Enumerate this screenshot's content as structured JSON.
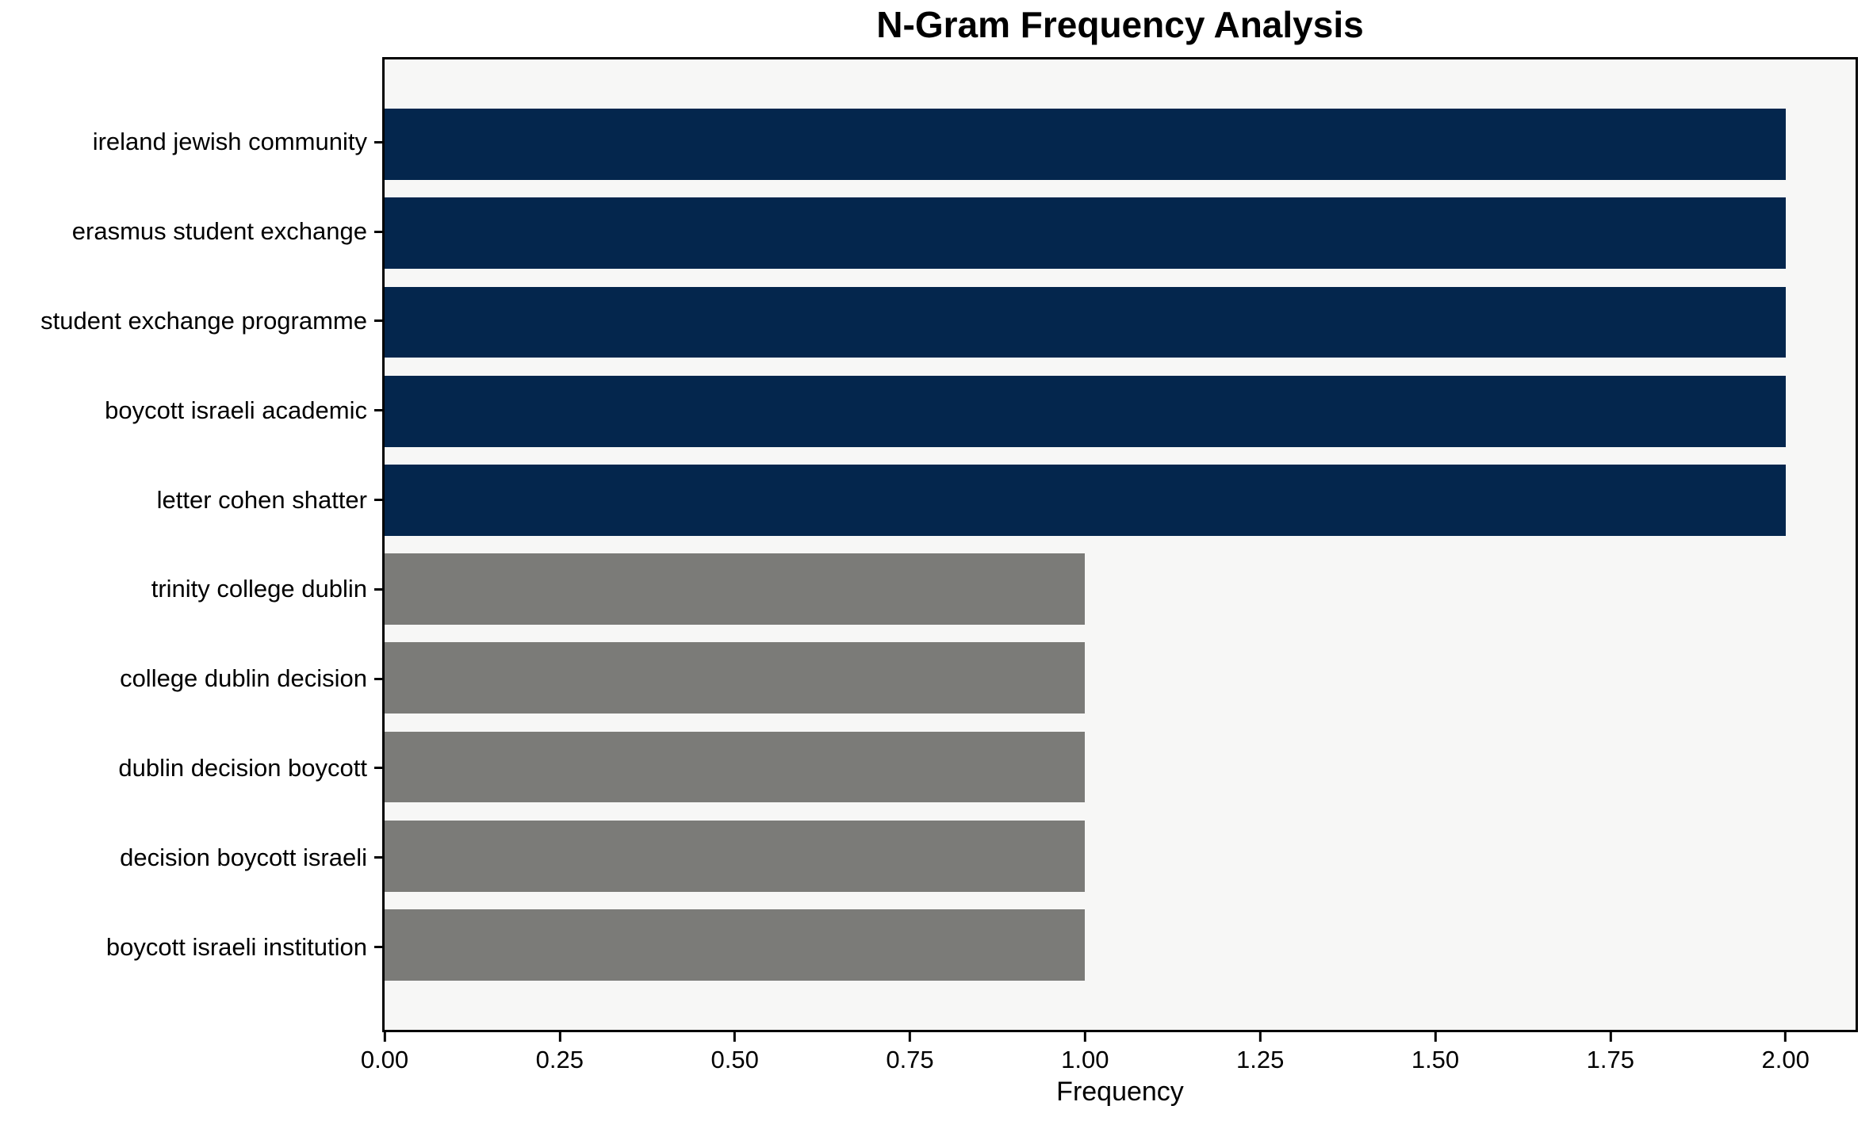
{
  "chart_data": {
    "type": "bar",
    "orientation": "horizontal",
    "title": "N-Gram Frequency Analysis",
    "xlabel": "Frequency",
    "ylabel": "",
    "categories": [
      "ireland jewish community",
      "erasmus student exchange",
      "student exchange programme",
      "boycott israeli academic",
      "letter cohen shatter",
      "trinity college dublin",
      "college dublin decision",
      "dublin decision boycott",
      "decision boycott israeli",
      "boycott israeli institution"
    ],
    "values": [
      2,
      2,
      2,
      2,
      2,
      1,
      1,
      1,
      1,
      1
    ],
    "bar_colors": [
      "#04264d",
      "#04264d",
      "#04264d",
      "#04264d",
      "#04264d",
      "#7b7b78",
      "#7b7b78",
      "#7b7b78",
      "#7b7b78",
      "#7b7b78"
    ],
    "xlim": [
      0,
      2.1
    ],
    "xticks": [
      {
        "value": 0.0,
        "label": "0.00"
      },
      {
        "value": 0.25,
        "label": "0.25"
      },
      {
        "value": 0.5,
        "label": "0.50"
      },
      {
        "value": 0.75,
        "label": "0.75"
      },
      {
        "value": 1.0,
        "label": "1.00"
      },
      {
        "value": 1.25,
        "label": "1.25"
      },
      {
        "value": 1.5,
        "label": "1.50"
      },
      {
        "value": 1.75,
        "label": "1.75"
      },
      {
        "value": 2.0,
        "label": "2.00"
      }
    ],
    "grid": false,
    "legend": "none",
    "colors": {
      "high_frequency_bar": "#04264d",
      "low_frequency_bar": "#7b7b78",
      "plot_background": "#f7f7f6",
      "figure_background": "#ffffff",
      "axis_and_text": "#000000"
    }
  }
}
